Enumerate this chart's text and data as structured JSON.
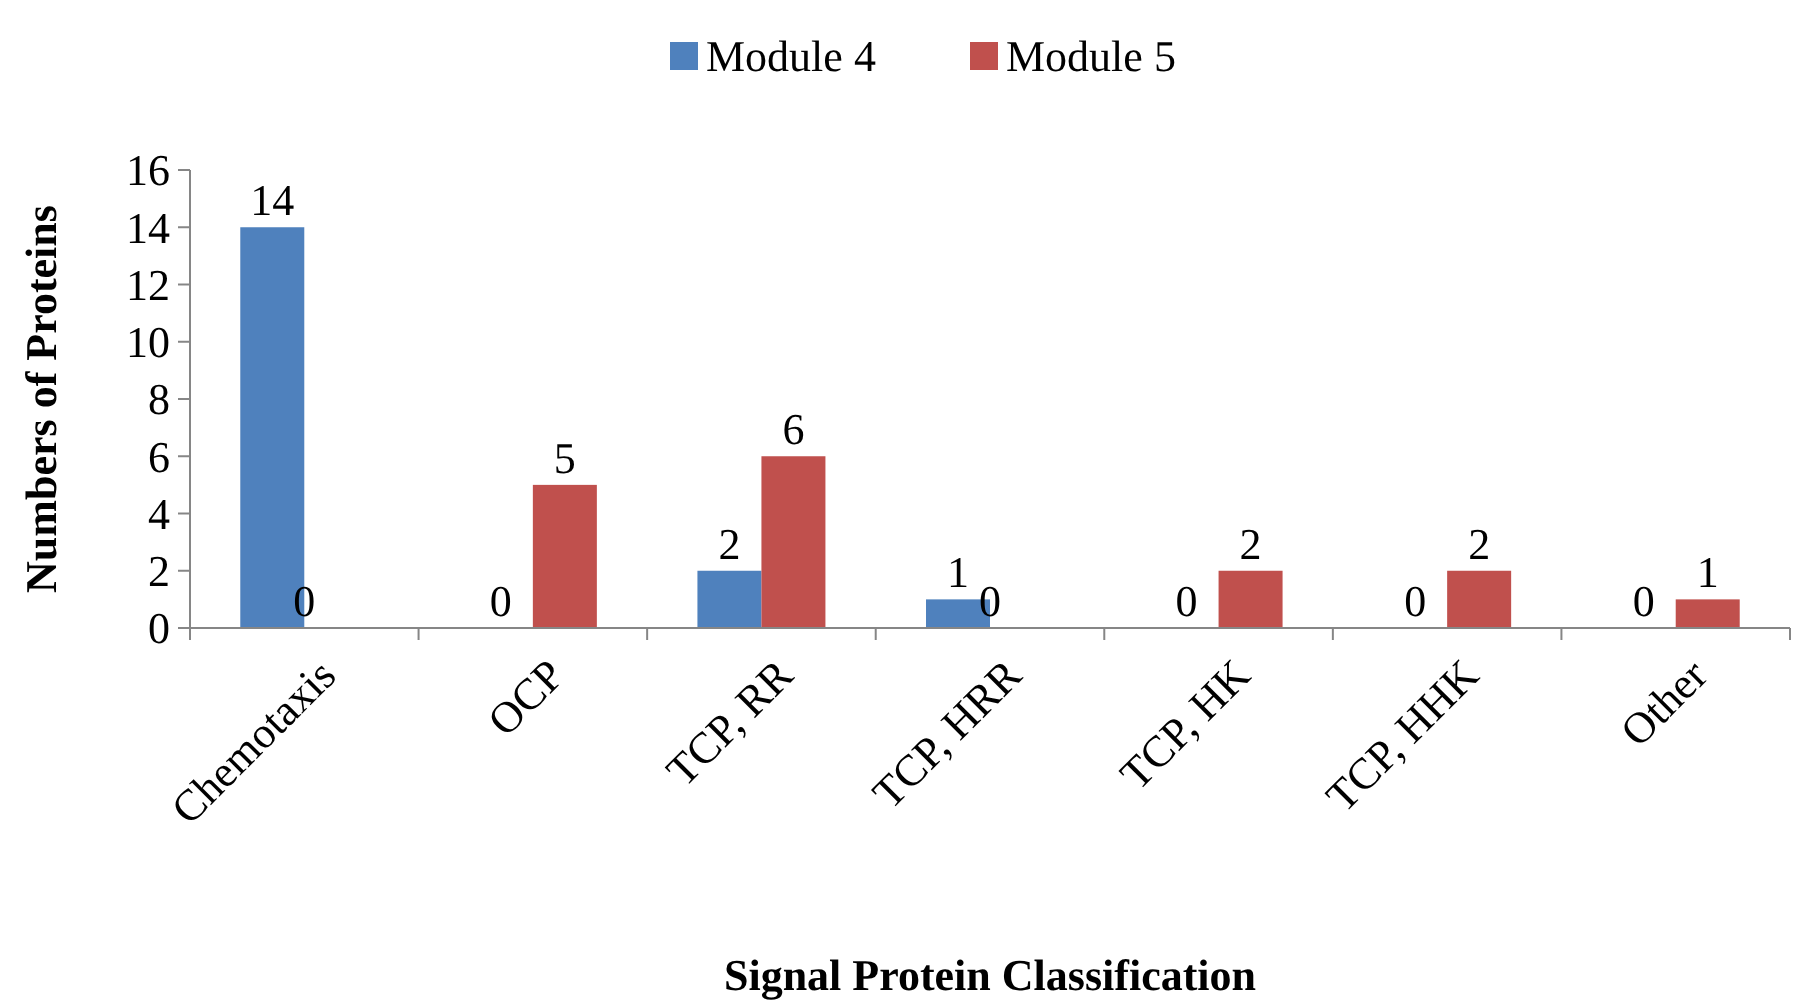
{
  "chart_data": {
    "type": "bar",
    "xlabel": "Signal Protein Classification",
    "ylabel": "Numbers of Proteins",
    "categories": [
      "Chemotaxis",
      "OCP",
      "TCP, RR",
      "TCP, HRR",
      "TCP, HK",
      "TCP, HHK",
      "Other"
    ],
    "series": [
      {
        "name": "Module 4",
        "color": "#4f81bd",
        "values": [
          14,
          0,
          2,
          1,
          0,
          0,
          0
        ]
      },
      {
        "name": "Module 5",
        "color": "#c0504d",
        "values": [
          0,
          5,
          6,
          0,
          2,
          2,
          1
        ]
      }
    ],
    "ylim": [
      0,
      16
    ],
    "yticks": [
      0,
      2,
      4,
      6,
      8,
      10,
      12,
      14,
      16
    ],
    "grid": false,
    "legend": "top",
    "data_labels": true
  }
}
